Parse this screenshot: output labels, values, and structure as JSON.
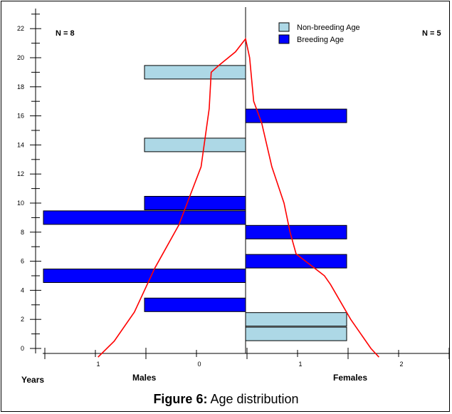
{
  "chart_data": {
    "type": "bar",
    "orientation": "horizontal",
    "layout": "population-pyramid",
    "y_ticks": [
      0,
      2,
      4,
      6,
      8,
      10,
      12,
      14,
      16,
      18,
      20,
      22
    ],
    "ylim": [
      0,
      23
    ],
    "x_ticks": [
      "1",
      "0",
      "1",
      "2"
    ],
    "x_axis_labels": {
      "left": "Years",
      "males": "Males",
      "females": "Females"
    },
    "n_labels": {
      "males": "N = 8",
      "females": "N = 5"
    },
    "legend": {
      "placement": "top-center",
      "entries": [
        {
          "label": "Non-breeding Age",
          "color": "#add8e6"
        },
        {
          "label": "Breeding Age",
          "color": "#0000ff"
        }
      ]
    },
    "males": [
      {
        "age": 19,
        "count": 1,
        "category": "Non-breeding Age"
      },
      {
        "age": 14,
        "count": 1,
        "category": "Non-breeding Age"
      },
      {
        "age": 10,
        "count": 1,
        "category": "Breeding Age"
      },
      {
        "age": 9,
        "count": 2,
        "category": "Breeding Age"
      },
      {
        "age": 5,
        "count": 2,
        "category": "Breeding Age"
      },
      {
        "age": 3,
        "count": 1,
        "category": "Breeding Age"
      }
    ],
    "females": [
      {
        "age": 16,
        "count": 1,
        "category": "Breeding Age"
      },
      {
        "age": 8,
        "count": 1,
        "category": "Breeding Age"
      },
      {
        "age": 6,
        "count": 1,
        "category": "Breeding Age"
      },
      {
        "age": 2,
        "count": 1,
        "category": "Non-breeding Age"
      },
      {
        "age": 1,
        "count": 1,
        "category": "Non-breeding Age"
      }
    ],
    "curve": {
      "color": "#ff0000",
      "points": [
        {
          "x": -0.73,
          "age": -0.6
        },
        {
          "x": -0.65,
          "age": 0.5
        },
        {
          "x": -0.55,
          "age": 2.5
        },
        {
          "x": -0.45,
          "age": 5.5
        },
        {
          "x": -0.33,
          "age": 8.5
        },
        {
          "x": -0.22,
          "age": 12.5
        },
        {
          "x": -0.18,
          "age": 16.5
        },
        {
          "x": -0.17,
          "age": 19.0
        },
        {
          "x": -0.13,
          "age": 19.5
        },
        {
          "x": -0.05,
          "age": 20.4
        },
        {
          "x": 0.0,
          "age": 21.3
        },
        {
          "x": 0.02,
          "age": 20.0
        },
        {
          "x": 0.04,
          "age": 17.0
        },
        {
          "x": 0.08,
          "age": 15.5
        },
        {
          "x": 0.13,
          "age": 12.5
        },
        {
          "x": 0.19,
          "age": 10.0
        },
        {
          "x": 0.22,
          "age": 8.0
        },
        {
          "x": 0.25,
          "age": 6.5
        },
        {
          "x": 0.39,
          "age": 5.0
        },
        {
          "x": 0.42,
          "age": 4.4
        },
        {
          "x": 0.52,
          "age": 2.0
        },
        {
          "x": 0.62,
          "age": 0.0
        },
        {
          "x": 0.66,
          "age": -0.6
        }
      ]
    }
  },
  "caption": {
    "figure_label": "Figure 6:",
    "text": " Age distribution"
  }
}
